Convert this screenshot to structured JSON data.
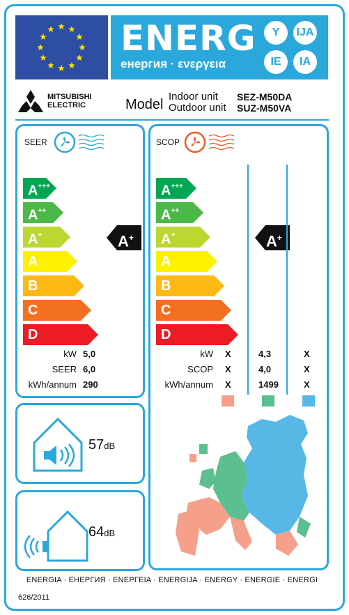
{
  "header": {
    "title": "ENERG",
    "subtitle": "енергия · ενεργεια",
    "lang_suffixes": [
      "Y",
      "IJA",
      "IE",
      "IA"
    ]
  },
  "brand": {
    "name_line1": "MITSUBISHI",
    "name_line2": "ELECTRIC",
    "model_label": "Model",
    "indoor_label": "Indoor unit",
    "outdoor_label": "Outdoor unit",
    "indoor_model": "SEZ-M50DA",
    "outdoor_model": "SUZ-M50VA"
  },
  "seer": {
    "label": "SEER",
    "classes": [
      {
        "letter": "A",
        "plus": "+++",
        "color": "#00a651"
      },
      {
        "letter": "A",
        "plus": "++",
        "color": "#4cb848"
      },
      {
        "letter": "A",
        "plus": "+",
        "color": "#bed630"
      },
      {
        "letter": "A",
        "plus": "",
        "color": "#fff200"
      },
      {
        "letter": "B",
        "plus": "",
        "color": "#fdb913"
      },
      {
        "letter": "C",
        "plus": "",
        "color": "#f37021"
      },
      {
        "letter": "D",
        "plus": "",
        "color": "#ed1c24"
      }
    ],
    "rating": {
      "letter": "A",
      "plus": "+"
    },
    "rows": [
      {
        "label": "kW",
        "value": "5,0"
      },
      {
        "label": "SEER",
        "value": "6,0"
      },
      {
        "label": "kWh/annum",
        "value": "290"
      }
    ]
  },
  "scop": {
    "label": "SCOP",
    "rating": {
      "letter": "A",
      "plus": "+"
    },
    "rows": [
      {
        "label": "kW",
        "values": [
          "X",
          "4,3",
          "X"
        ]
      },
      {
        "label": "SCOP",
        "values": [
          "X",
          "4,0",
          "X"
        ]
      },
      {
        "label": "kWh/annum",
        "values": [
          "X",
          "1499",
          "X"
        ]
      }
    ],
    "zone_colors": [
      "#f4a08a",
      "#5bbf8f",
      "#57b8e6"
    ]
  },
  "sound": {
    "indoor_value": "57",
    "outdoor_value": "64",
    "unit": "dB"
  },
  "footer": {
    "languages": "ENERGIA · ЕНЕРГИЯ · ΕΝΕΡΓΕΙΑ · ENERGIJA · ENERGY · ENERGIE · ENERGI",
    "regulation": "626/2011"
  }
}
